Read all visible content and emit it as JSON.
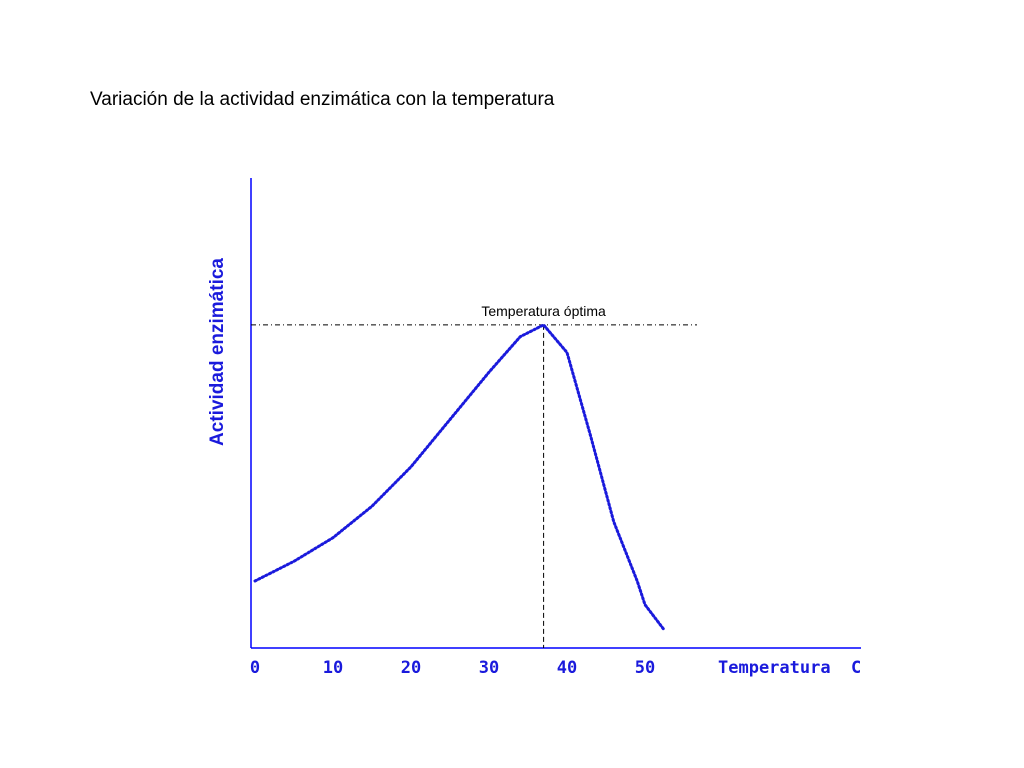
{
  "title": "Variación de la actividad enzimática con la temperatura",
  "colors": {
    "axis": "#0000ff",
    "curve": "#1a1adc",
    "text": "#000000",
    "label": "#1a1adc"
  },
  "chart_data": {
    "type": "line",
    "title": "Variación de la actividad enzimática con la temperatura",
    "xlabel": "Temperatura  C",
    "ylabel": "Actividad enzimática",
    "xticks": [
      "0",
      "10",
      "20",
      "30",
      "40",
      "50"
    ],
    "xlim": [
      0,
      77
    ],
    "ylim": [
      0,
      100
    ],
    "grid": false,
    "series": [
      {
        "line_style": "dotted",
        "points": [
          [
            0,
            17
          ],
          [
            5,
            22
          ],
          [
            10,
            28
          ],
          [
            15,
            36
          ],
          [
            20,
            46
          ],
          [
            25,
            58
          ],
          [
            30,
            70
          ],
          [
            34,
            79
          ],
          [
            37,
            82
          ],
          [
            40,
            75
          ],
          [
            43,
            54
          ],
          [
            46,
            32
          ],
          [
            49,
            17
          ],
          [
            50,
            11
          ],
          [
            52.5,
            4.5
          ]
        ]
      }
    ],
    "annotations": [
      {
        "text": "Temperatura óptima",
        "x": 37,
        "y": 82,
        "guide_lines": "dashed horizontal to y-axis and vertical to x-axis"
      }
    ]
  }
}
